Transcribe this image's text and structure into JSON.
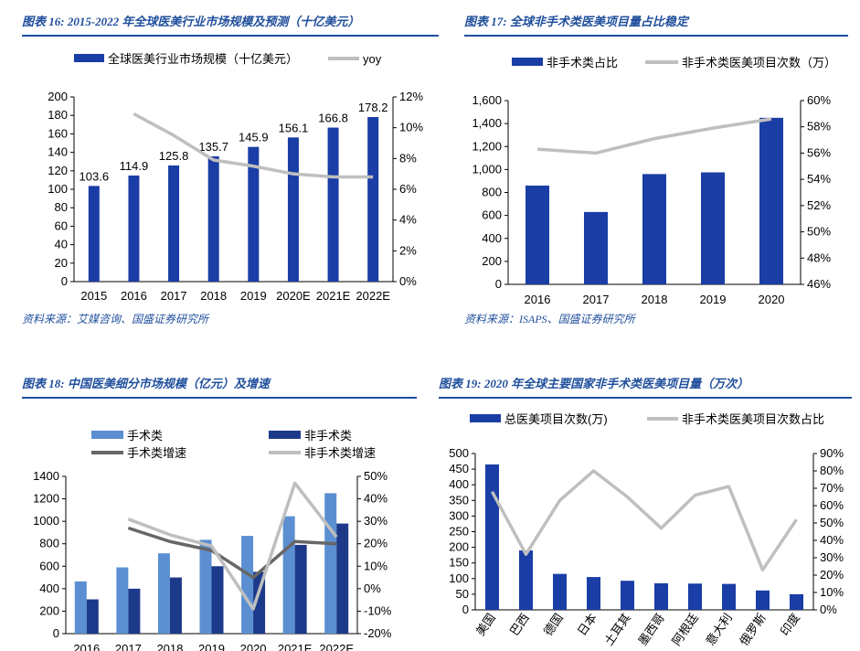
{
  "colors": {
    "title": "#1f4e9c",
    "dark_blue": "#1a3da6",
    "light_blue": "#5b8fd1",
    "navy": "#1d3a8a",
    "gray": "#bfbfbf",
    "dark_gray": "#666666"
  },
  "panels": [
    {
      "title": "图表 16:  2015-2022 年全球医美行业市场规模及预测（十亿美元）",
      "source": "资料来源：艾媒咨询、国盛证券研究所"
    },
    {
      "title": "图表 17:  全球非手术类医美项目量占比稳定",
      "source": "资料来源：ISAPS、国盛证券研究所"
    },
    {
      "title": "图表 18:  中国医美细分市场规模（亿元）及增速",
      "source": ""
    },
    {
      "title": "图表 19:  2020 年全球主要国家非手术类医美项目量（万次）",
      "source": ""
    }
  ],
  "chart_data": [
    {
      "type": "bar+line",
      "categories": [
        "2015",
        "2016",
        "2017",
        "2018",
        "2019",
        "2020E",
        "2021E",
        "2022E"
      ],
      "series": [
        {
          "name": "全球医美行业市场规模（十亿美元）",
          "axis": "left",
          "type": "bar",
          "values": [
            103.6,
            114.9,
            125.8,
            135.7,
            145.9,
            156.1,
            166.8,
            178.2
          ],
          "data_labels": [
            "103.6",
            "114.9",
            "125.8",
            "135.7",
            "145.9",
            "156.1",
            "166.8",
            "178.2"
          ]
        },
        {
          "name": "yoy",
          "axis": "right",
          "type": "line",
          "values": [
            null,
            10.9,
            9.5,
            7.9,
            7.5,
            7.0,
            6.8,
            6.8
          ]
        }
      ],
      "ylim": [
        0,
        200
      ],
      "yticks": [
        "0",
        "20",
        "40",
        "60",
        "80",
        "100",
        "120",
        "140",
        "160",
        "180",
        "200"
      ],
      "y2lim": [
        0,
        12
      ],
      "y2ticks": [
        "0%",
        "2%",
        "4%",
        "6%",
        "8%",
        "10%",
        "12%"
      ]
    },
    {
      "type": "bar+line",
      "categories": [
        "2016",
        "2017",
        "2018",
        "2019",
        "2020"
      ],
      "series": [
        {
          "name": "非手术类占比",
          "axis": "left",
          "type": "bar",
          "values": [
            860,
            630,
            960,
            975,
            1450
          ]
        },
        {
          "name": "非手术类医美项目次数（万）",
          "axis": "right",
          "type": "line",
          "values": [
            56.3,
            56.0,
            57.1,
            57.9,
            58.6
          ]
        }
      ],
      "ylim": [
        0,
        1600
      ],
      "yticks": [
        "0",
        "200",
        "400",
        "600",
        "800",
        "1,000",
        "1,200",
        "1,400",
        "1,600"
      ],
      "y2lim": [
        46,
        60
      ],
      "y2ticks": [
        "46%",
        "48%",
        "50%",
        "52%",
        "54%",
        "56%",
        "58%",
        "60%"
      ]
    },
    {
      "type": "bar+line",
      "categories": [
        "2016",
        "2017",
        "2018",
        "2019",
        "2020",
        "2021E",
        "2022E"
      ],
      "series": [
        {
          "name": "手术类",
          "axis": "left",
          "type": "bar",
          "values": [
            465,
            590,
            715,
            835,
            870,
            1045,
            1250
          ]
        },
        {
          "name": "非手术类",
          "axis": "left",
          "type": "bar",
          "values": [
            305,
            400,
            500,
            600,
            550,
            790,
            980
          ]
        },
        {
          "name": "手术类增速",
          "axis": "right",
          "type": "line",
          "values": [
            null,
            27,
            21,
            17,
            5,
            21,
            20
          ]
        },
        {
          "name": "非手术类增速",
          "axis": "right",
          "type": "line",
          "values": [
            null,
            31,
            24,
            19,
            -9,
            47,
            23
          ]
        }
      ],
      "ylim": [
        0,
        1400
      ],
      "yticks": [
        "0",
        "200",
        "400",
        "600",
        "800",
        "1000",
        "1200",
        "1400"
      ],
      "y2lim": [
        -20,
        50
      ],
      "y2ticks": [
        "-20%",
        "-10%",
        "0%",
        "10%",
        "20%",
        "30%",
        "40%",
        "50%"
      ]
    },
    {
      "type": "bar+line",
      "categories": [
        "美国",
        "巴西",
        "德国",
        "日本",
        "土耳其",
        "墨西哥",
        "阿根廷",
        "意大利",
        "俄罗斯",
        "印度"
      ],
      "series": [
        {
          "name": "总医美项目次数(万)",
          "axis": "left",
          "type": "bar",
          "values": [
            465,
            190,
            115,
            105,
            93,
            85,
            84,
            83,
            62,
            50
          ]
        },
        {
          "name": "非手术类医美项目次数占比",
          "axis": "right",
          "type": "line",
          "values": [
            68,
            32,
            63,
            80,
            65,
            47,
            66,
            71,
            23,
            52
          ]
        }
      ],
      "ylim": [
        0,
        500
      ],
      "yticks": [
        "0",
        "50",
        "100",
        "150",
        "200",
        "250",
        "300",
        "350",
        "400",
        "450",
        "500"
      ],
      "y2lim": [
        0,
        90
      ],
      "y2ticks": [
        "0%",
        "10%",
        "20%",
        "30%",
        "40%",
        "50%",
        "60%",
        "70%",
        "80%",
        "90%"
      ]
    }
  ]
}
